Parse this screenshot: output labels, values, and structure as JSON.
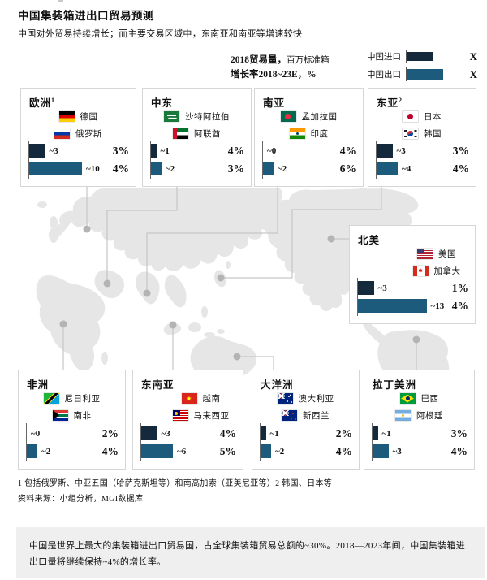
{
  "header": {
    "title": "中国集装箱进出口贸易预测",
    "subtitle": "中国对外贸易持续增长；而主要交易区域中，东南亚和南亚等增速较快"
  },
  "legend": {
    "volume_bold": "2018贸易量，",
    "volume_unit": "百万标准箱",
    "growth_line": "增长率2018~23E，%",
    "import_label": "中国进口",
    "export_label": "中国出口",
    "import_sample": "X",
    "export_sample": "X"
  },
  "colors": {
    "import": "#142a3c",
    "export": "#1d5b7c",
    "map": "#e6e6e6",
    "connector": "#c6c6c6",
    "dot": "#b4b4b4"
  },
  "chart_data": {
    "type": "bar",
    "title": "中国集装箱进出口贸易预测",
    "legend": [
      "中国进口",
      "中国出口"
    ],
    "volume_unit": "2018贸易量，百万标准箱",
    "growth_unit": "增长率2018~23E，%",
    "panels": [
      {
        "region": "欧洲",
        "sup": "1",
        "countries": [
          {
            "name": "德国"
          },
          {
            "name": "俄罗斯"
          }
        ],
        "import": {
          "value": 3,
          "label": "~3",
          "growth": "3%"
        },
        "export": {
          "value": 10,
          "label": "~10",
          "growth": "4%"
        }
      },
      {
        "region": "中东",
        "countries": [
          {
            "name": "沙特阿拉伯"
          },
          {
            "name": "阿联酋"
          }
        ],
        "import": {
          "value": 1,
          "label": "~1",
          "growth": "4%"
        },
        "export": {
          "value": 2,
          "label": "~2",
          "growth": "3%"
        }
      },
      {
        "region": "南亚",
        "countries": [
          {
            "name": "孟加拉国"
          },
          {
            "name": "印度"
          }
        ],
        "import": {
          "value": 0,
          "label": "~0",
          "growth": "4%"
        },
        "export": {
          "value": 2,
          "label": "~2",
          "growth": "6%"
        }
      },
      {
        "region": "东亚",
        "sup": "2",
        "countries": [
          {
            "name": "日本"
          },
          {
            "name": "韩国"
          }
        ],
        "import": {
          "value": 3,
          "label": "~3",
          "growth": "3%"
        },
        "export": {
          "value": 4,
          "label": "~4",
          "growth": "4%"
        }
      },
      {
        "region": "北美",
        "countries": [
          {
            "name": "美国"
          },
          {
            "name": "加拿大"
          }
        ],
        "import": {
          "value": 3,
          "label": "~3",
          "growth": "1%"
        },
        "export": {
          "value": 13,
          "label": "~13",
          "growth": "4%"
        }
      },
      {
        "region": "非洲",
        "countries": [
          {
            "name": "尼日利亚"
          },
          {
            "name": "南非"
          }
        ],
        "import": {
          "value": 0,
          "label": "~0",
          "growth": "2%"
        },
        "export": {
          "value": 2,
          "label": "~2",
          "growth": "4%"
        }
      },
      {
        "region": "东南亚",
        "countries": [
          {
            "name": "越南"
          },
          {
            "name": "马来西亚"
          }
        ],
        "import": {
          "value": 3,
          "label": "~3",
          "growth": "4%"
        },
        "export": {
          "value": 6,
          "label": "~6",
          "growth": "5%"
        }
      },
      {
        "region": "大洋洲",
        "countries": [
          {
            "name": "澳大利亚"
          },
          {
            "name": "新西兰"
          }
        ],
        "import": {
          "value": 1,
          "label": "~1",
          "growth": "2%"
        },
        "export": {
          "value": 2,
          "label": "~2",
          "growth": "4%"
        }
      },
      {
        "region": "拉丁美洲",
        "countries": [
          {
            "name": "巴西"
          },
          {
            "name": "阿根廷"
          }
        ],
        "import": {
          "value": 1,
          "label": "~1",
          "growth": "3%"
        },
        "export": {
          "value": 3,
          "label": "~3",
          "growth": "4%"
        }
      }
    ]
  },
  "footnotes": {
    "note": "1 包括俄罗斯、中亚五国（哈萨克斯坦等）和南高加索（亚美尼亚等）2 韩国、日本等",
    "source": "资料来源：小组分析，MGI数据库"
  },
  "banner": {
    "text": "中国是世界上最大的集装箱进出口贸易国，占全球集装箱贸易总额的~30%。2018—2023年间，中国集装箱进出口量将继续保持~4%的增长率。"
  }
}
